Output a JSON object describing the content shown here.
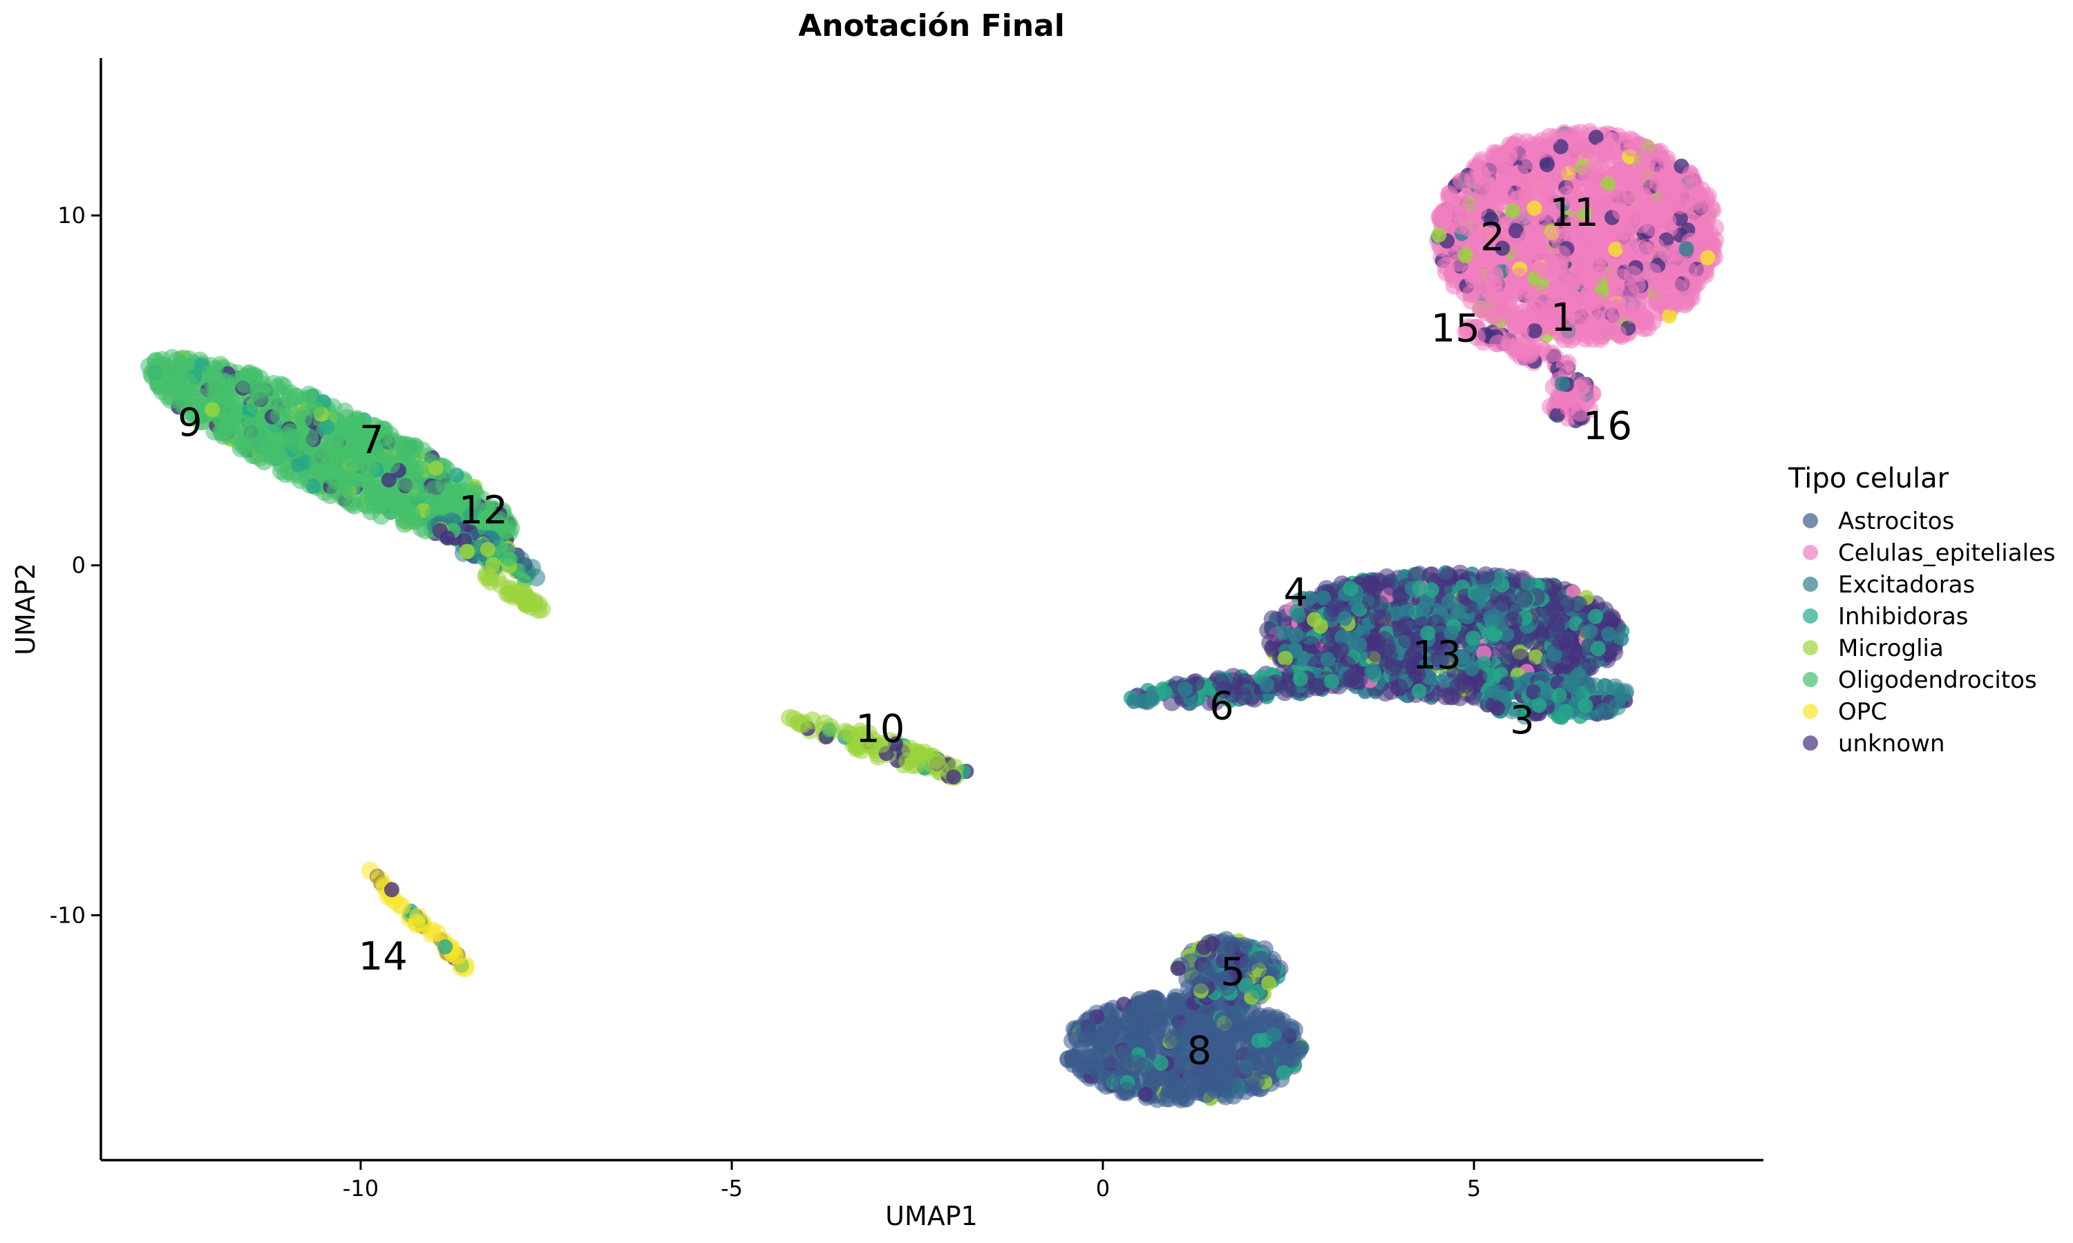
{
  "chart_data": {
    "type": "scatter",
    "title": "Anotación Final",
    "xlabel": "UMAP1",
    "ylabel": "UMAP2",
    "xlim": [
      -13.5,
      8.9
    ],
    "ylim": [
      -17,
      14.5
    ],
    "xticks": [
      {
        "value": -10,
        "label": "-10"
      },
      {
        "value": -5,
        "label": "-5"
      },
      {
        "value": 0,
        "label": "0"
      },
      {
        "value": 5,
        "label": "5"
      }
    ],
    "yticks": [
      {
        "value": -10,
        "label": "-10"
      },
      {
        "value": 0,
        "label": "0"
      },
      {
        "value": 10,
        "label": "10"
      }
    ],
    "grid": false,
    "legend": {
      "title": "Tipo celular",
      "placement": "right",
      "entries": [
        {
          "name": "Astrocitos",
          "color": "#3b5b8c"
        },
        {
          "name": "Celulas_epiteliales",
          "color": "#f07ec0"
        },
        {
          "name": "Excitadoras",
          "color": "#2c7f8e"
        },
        {
          "name": "Inhibidoras",
          "color": "#25a88a"
        },
        {
          "name": "Microglia",
          "color": "#9bd43c"
        },
        {
          "name": "Oligodendrocitos",
          "color": "#45c06b"
        },
        {
          "name": "OPC",
          "color": "#f5e627"
        },
        {
          "name": "unknown",
          "color": "#46327e"
        }
      ]
    },
    "clusters": [
      {
        "name": "Celulas_epiteliales island",
        "x": 6.4,
        "y": 9.4,
        "rx": 1.9,
        "ry": 3.0,
        "angle": 0,
        "composition": {
          "Celulas_epiteliales": 0.86,
          "unknown": 0.08,
          "Microglia": 0.03,
          "Excitadoras": 0.02,
          "OPC": 0.01
        }
      },
      {
        "name": "Celulas_epiteliales tail 15",
        "x": 5.6,
        "y": 6.2,
        "rx": 0.8,
        "ry": 0.25,
        "angle": -20,
        "composition": {
          "Celulas_epiteliales": 0.8,
          "unknown": 0.2
        }
      },
      {
        "name": "Celulas_epiteliales tail 16",
        "x": 6.3,
        "y": 4.8,
        "rx": 0.3,
        "ry": 0.7,
        "angle": 30,
        "composition": {
          "Celulas_epiteliales": 0.7,
          "unknown": 0.2,
          "Excitadoras": 0.1
        }
      },
      {
        "name": "Oligodendrocitos island",
        "x": -10.4,
        "y": 3.3,
        "rx": 2.7,
        "ry": 1.2,
        "angle": -25,
        "composition": {
          "Oligodendrocitos": 0.84,
          "unknown": 0.08,
          "Microglia": 0.04,
          "Inhibidoras": 0.04
        }
      },
      {
        "name": "Oligodendrocitos tail 12",
        "x": -8.3,
        "y": 0.4,
        "rx": 0.8,
        "ry": 0.4,
        "angle": -30,
        "composition": {
          "Excitadoras": 0.4,
          "Oligodendrocitos": 0.3,
          "unknown": 0.2,
          "Microglia": 0.1
        }
      },
      {
        "name": "Microglia tail",
        "x": -7.9,
        "y": -0.8,
        "rx": 0.5,
        "ry": 0.15,
        "angle": -30,
        "composition": {
          "Microglia": 1.0
        }
      },
      {
        "name": "Neuronal island",
        "x": 4.6,
        "y": -2.0,
        "rx": 2.4,
        "ry": 1.8,
        "angle": 0,
        "composition": {
          "unknown": 0.5,
          "Excitadoras": 0.28,
          "Inhibidoras": 0.16,
          "Microglia": 0.03,
          "Celulas_epiteliales": 0.03
        }
      },
      {
        "name": "Neuronal arm 6",
        "x": 1.9,
        "y": -3.5,
        "rx": 1.6,
        "ry": 0.35,
        "angle": 5,
        "composition": {
          "unknown": 0.5,
          "Excitadoras": 0.3,
          "Inhibidoras": 0.2
        }
      },
      {
        "name": "Neuronal lobe 3",
        "x": 6.1,
        "y": -3.8,
        "rx": 1.0,
        "ry": 0.55,
        "angle": 0,
        "composition": {
          "Excitadoras": 0.5,
          "Inhibidoras": 0.3,
          "unknown": 0.2
        }
      },
      {
        "name": "Microglia island 10",
        "x": -3.0,
        "y": -5.2,
        "rx": 1.3,
        "ry": 0.28,
        "angle": -18,
        "composition": {
          "Microglia": 0.75,
          "unknown": 0.15,
          "Inhibidoras": 0.1
        }
      },
      {
        "name": "OPC island 14",
        "x": -9.2,
        "y": -10.2,
        "rx": 1.0,
        "ry": 0.16,
        "angle": -45,
        "composition": {
          "OPC": 0.6,
          "unknown": 0.25,
          "Inhibidoras": 0.15
        }
      },
      {
        "name": "Astrocitos island",
        "x": 1.1,
        "y": -13.8,
        "rx": 1.6,
        "ry": 1.5,
        "angle": 0,
        "composition": {
          "Astrocitos": 0.88,
          "unknown": 0.04,
          "Inhibidoras": 0.04,
          "Excitadoras": 0.02,
          "Microglia": 0.02
        }
      },
      {
        "name": "Astrocitos upper 5",
        "x": 1.7,
        "y": -11.6,
        "rx": 0.7,
        "ry": 0.9,
        "angle": 0,
        "composition": {
          "Astrocitos": 0.55,
          "unknown": 0.2,
          "Inhibidoras": 0.15,
          "Microglia": 0.1
        }
      }
    ],
    "annotations": [
      {
        "text": "11",
        "x": 6.35,
        "y": 10.0
      },
      {
        "text": "2",
        "x": 5.25,
        "y": 9.3
      },
      {
        "text": "1",
        "x": 6.2,
        "y": 7.0
      },
      {
        "text": "15",
        "x": 4.75,
        "y": 6.7
      },
      {
        "text": "16",
        "x": 6.8,
        "y": 3.9
      },
      {
        "text": "9",
        "x": -12.3,
        "y": 4.0
      },
      {
        "text": "7",
        "x": -9.85,
        "y": 3.5
      },
      {
        "text": "12",
        "x": -8.35,
        "y": 1.5
      },
      {
        "text": "4",
        "x": 2.6,
        "y": -0.85
      },
      {
        "text": "13",
        "x": 4.5,
        "y": -2.65
      },
      {
        "text": "6",
        "x": 1.6,
        "y": -4.1
      },
      {
        "text": "3",
        "x": 5.65,
        "y": -4.5
      },
      {
        "text": "10",
        "x": -3.0,
        "y": -4.75
      },
      {
        "text": "14",
        "x": -9.7,
        "y": -11.25
      },
      {
        "text": "5",
        "x": 1.75,
        "y": -11.7
      },
      {
        "text": "8",
        "x": 1.3,
        "y": -13.95
      }
    ]
  }
}
